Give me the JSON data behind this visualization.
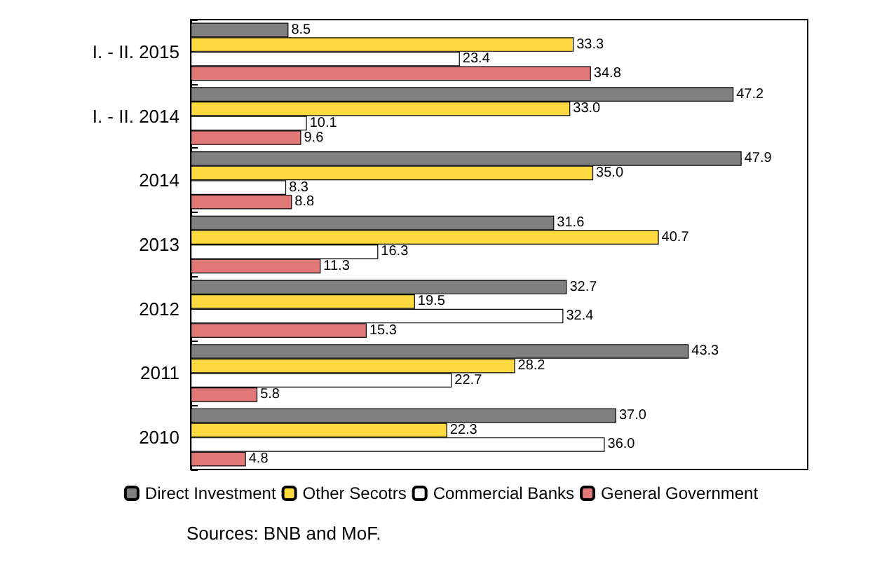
{
  "chart_data": {
    "type": "bar",
    "orientation": "horizontal",
    "categories": [
      "I. - II. 2015",
      "I. - II. 2014",
      "2014",
      "2013",
      "2012",
      "2011",
      "2010"
    ],
    "series": [
      {
        "name": "Direct Investment",
        "color": "#808080",
        "values": [
          8.5,
          47.2,
          47.9,
          31.6,
          32.7,
          43.3,
          37.0
        ],
        "value_labels": [
          "8.5",
          "47.2",
          "47.9",
          "31.6",
          "32.7",
          "43.3",
          "37.0"
        ]
      },
      {
        "name": "Other Secotrs",
        "color": "#ffd940",
        "values": [
          33.3,
          33.0,
          35.0,
          40.7,
          19.5,
          28.2,
          22.3
        ],
        "value_labels": [
          "33.3",
          "33.0",
          "35.0",
          "40.7",
          "19.5",
          "28.2",
          "22.3"
        ]
      },
      {
        "name": "Commercial Banks",
        "color": "#ffffff",
        "values": [
          23.4,
          10.1,
          8.3,
          16.3,
          32.4,
          22.7,
          36.0
        ],
        "value_labels": [
          "23.4",
          "10.1",
          "8.3",
          "16.3",
          "32.4",
          "22.7",
          "36.0"
        ]
      },
      {
        "name": "General Government",
        "color": "#e07878",
        "values": [
          34.8,
          9.6,
          8.8,
          11.3,
          15.3,
          5.8,
          4.8
        ],
        "value_labels": [
          "34.8",
          "9.6",
          "8.8",
          "11.3",
          "15.3",
          "5.8",
          "4.8"
        ]
      }
    ],
    "legend": "bottom",
    "grid": false,
    "annotations": [
      "Sources: BNB and MoF."
    ]
  }
}
